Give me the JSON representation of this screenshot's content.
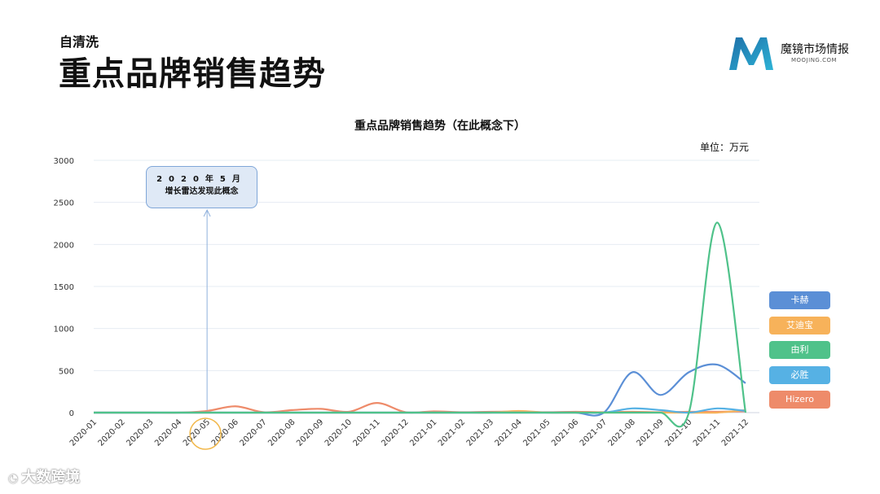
{
  "header": {
    "subtitle": "自清洗",
    "title": "重点品牌销售趋势"
  },
  "logo": {
    "name": "魔镜市场情报",
    "sub": "MOOJING.COM",
    "colors": [
      "#1e6fa8",
      "#2db3d6"
    ]
  },
  "unit_label": "单位：万元",
  "callout": {
    "line1": "2020年5月",
    "line2": "增长雷达发现此概念",
    "highlight_category": "2020-05"
  },
  "watermark": {
    "icon": "gauge-icon",
    "text": "大数跨境"
  },
  "chart_data": {
    "type": "line",
    "title": "重点品牌销售趋势（在此概念下）",
    "ylim": [
      0,
      3000
    ],
    "yticks": [
      0,
      500,
      1000,
      1500,
      2000,
      2500,
      3000
    ],
    "grid": true,
    "legend_position": "right",
    "categories": [
      "2020-01",
      "2020-02",
      "2020-03",
      "2020-04",
      "2020-05",
      "2020-06",
      "2020-07",
      "2020-08",
      "2020-09",
      "2020-10",
      "2020-11",
      "2020-12",
      "2021-01",
      "2021-02",
      "2021-03",
      "2021-04",
      "2021-05",
      "2021-06",
      "2021-07",
      "2021-08",
      "2021-09",
      "2021-10",
      "2021-11",
      "2021-12"
    ],
    "series": [
      {
        "name": "卡赫",
        "color": "#5b8fd6",
        "values": [
          0,
          0,
          0,
          0,
          0,
          0,
          0,
          0,
          0,
          0,
          0,
          0,
          0,
          0,
          0,
          0,
          0,
          0,
          0,
          480,
          210,
          480,
          570,
          350
        ]
      },
      {
        "name": "艾迪宝",
        "color": "#f7b25a",
        "values": [
          0,
          0,
          0,
          0,
          0,
          0,
          0,
          0,
          0,
          0,
          0,
          0,
          0,
          0,
          0,
          20,
          0,
          0,
          0,
          0,
          0,
          0,
          0,
          30
        ]
      },
      {
        "name": "由利",
        "color": "#4fc28a",
        "values": [
          0,
          0,
          0,
          0,
          0,
          0,
          0,
          0,
          0,
          0,
          0,
          0,
          0,
          0,
          0,
          0,
          0,
          0,
          0,
          0,
          0,
          0,
          2260,
          0
        ]
      },
      {
        "name": "必胜",
        "color": "#56b1e4",
        "values": [
          0,
          0,
          0,
          0,
          0,
          0,
          0,
          0,
          0,
          0,
          0,
          0,
          0,
          0,
          0,
          0,
          0,
          0,
          0,
          50,
          30,
          0,
          50,
          20
        ]
      },
      {
        "name": "Hizero",
        "color": "#ee8b6a",
        "values": [
          0,
          0,
          0,
          0,
          20,
          75,
          5,
          30,
          45,
          10,
          115,
          5,
          15,
          5,
          10,
          10,
          5,
          10,
          5,
          10,
          5,
          10,
          10,
          15
        ]
      }
    ]
  }
}
